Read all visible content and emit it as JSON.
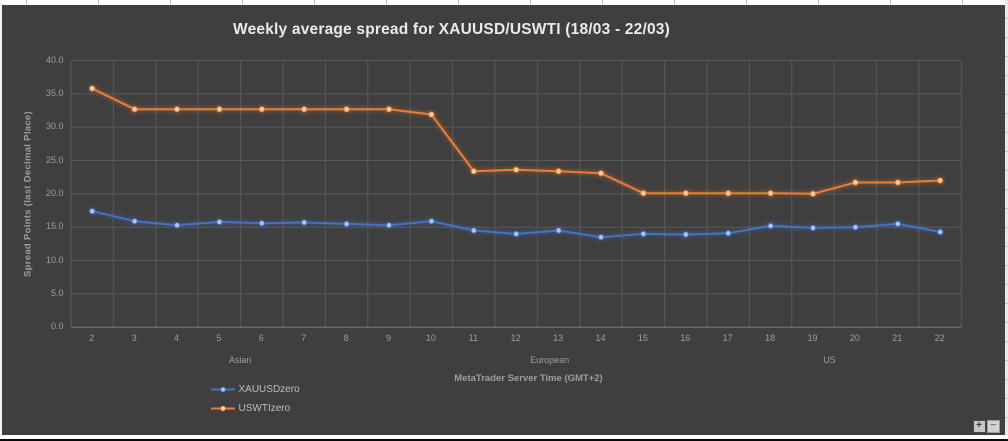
{
  "chart_data": {
    "type": "line",
    "title": "Weekly average spread for XAUUSD/USWTI (18/03 - 22/03)",
    "xlabel": "MetaTrader Server Time (GMT+2)",
    "ylabel": "Spread Points (last Decimal Place)",
    "categories": [
      2,
      3,
      4,
      5,
      6,
      7,
      8,
      9,
      10,
      11,
      12,
      13,
      14,
      15,
      16,
      17,
      18,
      19,
      20,
      21,
      22
    ],
    "series": [
      {
        "name": "XAUUSDzero",
        "color": "#4472c4",
        "marker_color": "#a8c6ee",
        "values": [
          17.4,
          15.9,
          15.3,
          15.8,
          15.6,
          15.7,
          15.5,
          15.3,
          15.9,
          14.5,
          14.0,
          14.5,
          13.5,
          14.0,
          13.9,
          14.1,
          15.2,
          14.9,
          15.0,
          15.5,
          14.3
        ]
      },
      {
        "name": "USWTIzero",
        "color": "#ed7d31",
        "marker_color": "#fbcda4",
        "values": [
          35.8,
          32.7,
          32.7,
          32.7,
          32.7,
          32.7,
          32.7,
          32.7,
          31.9,
          23.4,
          23.6,
          23.4,
          23.1,
          20.1,
          20.1,
          20.1,
          20.1,
          20.0,
          21.7,
          21.7,
          22.0
        ]
      }
    ],
    "ylim": [
      0,
      40
    ],
    "ytick_step": 5,
    "grid": true,
    "legend_position": "bottom-left",
    "session_labels": [
      {
        "label": "Asian",
        "center_category": 5.5
      },
      {
        "label": "European",
        "center_category": 12.8
      },
      {
        "label": "US",
        "center_category": 19.4
      }
    ]
  },
  "controls": {
    "zoom_in_label": "+",
    "zoom_out_label": "−"
  },
  "colors": {
    "chart_background": "#3f3f3f",
    "gridline": "#595959",
    "axis_line": "#7a7a7a",
    "tick_text": "#9e9e9e",
    "title_text": "#eaeaea",
    "legend_text": "#bdbdbd"
  }
}
